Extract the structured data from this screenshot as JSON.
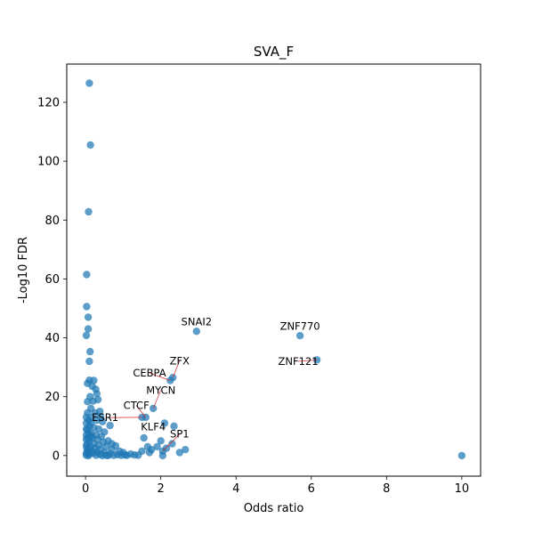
{
  "chart_data": {
    "type": "scatter",
    "title": "SVA_F",
    "xlabel": "Odds ratio",
    "ylabel": "-Log10 FDR",
    "xlim": [
      -0.5,
      10.5
    ],
    "ylim": [
      -7,
      133
    ],
    "xticks": [
      0,
      2,
      4,
      6,
      8,
      10
    ],
    "yticks": [
      0,
      20,
      40,
      60,
      80,
      100,
      120
    ],
    "point_color": "#1f77b4",
    "grid": false,
    "points": [
      [
        0.1,
        126.5
      ],
      [
        0.13,
        105.5
      ],
      [
        0.08,
        82.8
      ],
      [
        0.03,
        61.5
      ],
      [
        0.03,
        50.6
      ],
      [
        0.07,
        47
      ],
      [
        0.07,
        43
      ],
      [
        0.02,
        40.8
      ],
      [
        0.12,
        35.3
      ],
      [
        0.1,
        32
      ],
      [
        0.1,
        25.6
      ],
      [
        0.05,
        24.5
      ],
      [
        0.18,
        23.5
      ],
      [
        0.27,
        22.5
      ],
      [
        0.3,
        21
      ],
      [
        0.22,
        25.5
      ],
      [
        0.12,
        20
      ],
      [
        0.2,
        18.5
      ],
      [
        0.33,
        19
      ],
      [
        0.05,
        18.3
      ],
      [
        0.38,
        15
      ],
      [
        0.25,
        14.5
      ],
      [
        0.05,
        14.5
      ],
      [
        0.4,
        13.2
      ],
      [
        0.15,
        12.8
      ],
      [
        0.3,
        12
      ],
      [
        0.45,
        11.5
      ],
      [
        0.65,
        10.2
      ],
      [
        0.1,
        10
      ],
      [
        0.22,
        9.5
      ],
      [
        0.35,
        9
      ],
      [
        0.05,
        8.8
      ],
      [
        0.5,
        8
      ],
      [
        0.15,
        7.5
      ],
      [
        0.28,
        7
      ],
      [
        0.42,
        6.5
      ],
      [
        0.05,
        6
      ],
      [
        0.18,
        6
      ],
      [
        0.32,
        5.5
      ],
      [
        0.6,
        5
      ],
      [
        0.1,
        5
      ],
      [
        0.48,
        4.5
      ],
      [
        0.22,
        4
      ],
      [
        0.7,
        4
      ],
      [
        0.05,
        4
      ],
      [
        0.35,
        3.5
      ],
      [
        0.8,
        3.3
      ],
      [
        0.12,
        3
      ],
      [
        0.55,
        3
      ],
      [
        0.25,
        2.5
      ],
      [
        0.03,
        2.5
      ],
      [
        0.4,
        2
      ],
      [
        0.7,
        2
      ],
      [
        0.15,
        1.8
      ],
      [
        0.9,
        1.5
      ],
      [
        0.05,
        1.5
      ],
      [
        0.3,
        1.2
      ],
      [
        0.5,
        1
      ],
      [
        1.0,
        1
      ],
      [
        0.2,
        0.8
      ],
      [
        0.02,
        0.8
      ],
      [
        0.65,
        0.6
      ],
      [
        1.2,
        0.5
      ],
      [
        0.1,
        0.5
      ],
      [
        0.38,
        0.4
      ],
      [
        0.85,
        0.3
      ],
      [
        1.05,
        0.2
      ],
      [
        1.3,
        0.2
      ],
      [
        0.02,
        0.1
      ],
      [
        0.28,
        0.1
      ],
      [
        0.55,
        0.1
      ],
      [
        0.75,
        0.05
      ],
      [
        0.95,
        0.05
      ],
      [
        1.1,
        0.05
      ],
      [
        1.4,
        0.1
      ],
      [
        0.08,
        0
      ],
      [
        0.45,
        0
      ],
      [
        0.6,
        0
      ],
      [
        0.02,
        3.5
      ],
      [
        0.02,
        5.5
      ],
      [
        0.02,
        7
      ],
      [
        0.02,
        9
      ],
      [
        0.02,
        11
      ],
      [
        0.02,
        13
      ],
      [
        0.08,
        12
      ],
      [
        0.08,
        7.5
      ],
      [
        0.08,
        2
      ],
      [
        0.14,
        16
      ],
      [
        0.14,
        11
      ],
      [
        0.14,
        6.5
      ],
      [
        1.5,
        13
      ],
      [
        1.6,
        13
      ],
      [
        1.55,
        6
      ],
      [
        1.65,
        3
      ],
      [
        1.75,
        2
      ],
      [
        1.8,
        16
      ],
      [
        1.9,
        3
      ],
      [
        2.0,
        5
      ],
      [
        2.05,
        0
      ],
      [
        2.1,
        11
      ],
      [
        2.15,
        2.5
      ],
      [
        2.25,
        25.5
      ],
      [
        2.32,
        26.5
      ],
      [
        2.35,
        10
      ],
      [
        2.5,
        1
      ],
      [
        2.65,
        2
      ],
      [
        2.3,
        4
      ],
      [
        2.05,
        1.5
      ],
      [
        1.7,
        1
      ],
      [
        1.5,
        1.5
      ],
      [
        2.95,
        42.2
      ],
      [
        5.7,
        40.7
      ],
      [
        6.15,
        32.5
      ],
      [
        10.0,
        0
      ]
    ],
    "annotations": [
      {
        "text": "SNAI2",
        "x": 2.95,
        "y": 42.2,
        "tx": 2.95,
        "ty": 44.2
      },
      {
        "text": "ZNF770",
        "x": 5.7,
        "y": 40.7,
        "tx": 5.7,
        "ty": 42.8
      },
      {
        "text": "ZNF121",
        "x": 6.15,
        "y": 32.5,
        "tx": 5.65,
        "ty": 30.8
      },
      {
        "text": "ZFX",
        "x": 2.32,
        "y": 26.5,
        "tx": 2.5,
        "ty": 31
      },
      {
        "text": "CEBPA",
        "x": 2.25,
        "y": 25.5,
        "tx": 1.7,
        "ty": 26.8
      },
      {
        "text": "MYCN",
        "x": 1.8,
        "y": 16,
        "tx": 2.0,
        "ty": 21
      },
      {
        "text": "CTCF",
        "x": 1.6,
        "y": 13,
        "tx": 1.35,
        "ty": 15.8
      },
      {
        "text": "ESR1",
        "x": 1.5,
        "y": 13,
        "tx": 0.52,
        "ty": 11.7
      },
      {
        "text": "KLF4",
        "x": 1.55,
        "y": 6,
        "tx": 1.8,
        "ty": 8.6
      },
      {
        "text": "SP1",
        "x": 2.05,
        "y": 1.5,
        "tx": 2.5,
        "ty": 6.1
      }
    ]
  }
}
